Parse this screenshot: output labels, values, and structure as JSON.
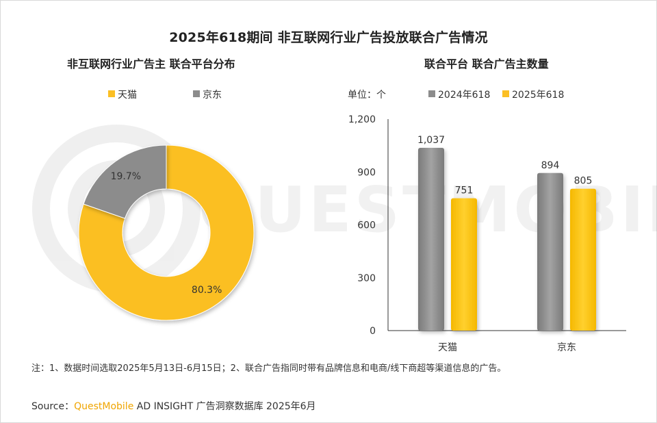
{
  "title": "2025年618期间 非互联网行业广告投放联合广告情况",
  "left_chart": {
    "subtitle": "非互联网行业广告主 联合平台分布"
  },
  "right_chart": {
    "subtitle": "联合平台 联合广告主数量",
    "unit": "单位：个"
  },
  "watermark_text": "QUESTMOBILE",
  "chart_data": [
    {
      "type": "pie",
      "style": "donut",
      "labels": [
        "天猫",
        "京东"
      ],
      "values": [
        80.3,
        19.7
      ],
      "value_labels": [
        "80.3%",
        "19.7%"
      ],
      "colors": [
        "#fbbf24",
        "#8c8c8c"
      ],
      "legend_position": "top"
    },
    {
      "type": "bar",
      "categories": [
        "天猫",
        "京东"
      ],
      "series": [
        {
          "name": "2024年618",
          "values": [
            1037,
            894
          ],
          "labels": [
            "1,037",
            "894"
          ],
          "color": "#8c8c8c"
        },
        {
          "name": "2025年618",
          "values": [
            751,
            805
          ],
          "labels": [
            "751",
            "805"
          ],
          "color": "#fbbf24"
        }
      ],
      "ylim": [
        0,
        1200
      ],
      "yticks": [
        0,
        300,
        600,
        900,
        1200
      ],
      "ytick_labels": [
        "0",
        "300",
        "600",
        "900",
        "1,200"
      ],
      "grid": false,
      "legend_position": "top"
    }
  ],
  "note": "注：1、数据时间选取2025年5月13日-6月15日；2、联合广告指同时带有品牌信息和电商/线下商超等渠道信息的广告。",
  "source": {
    "prefix": "Source：",
    "brand": "QuestMobile",
    "rest": " AD INSIGHT 广告洞察数据库 2025年6月"
  }
}
